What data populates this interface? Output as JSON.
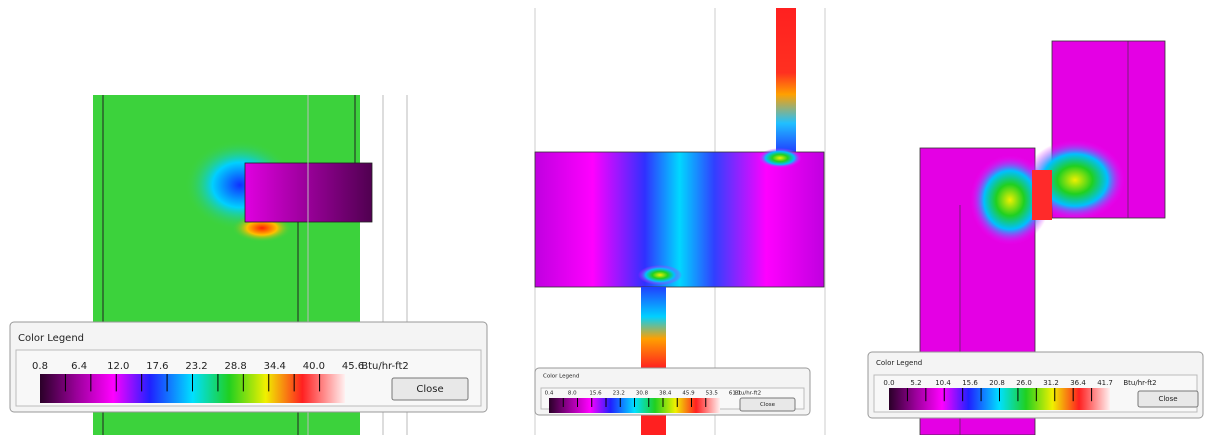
{
  "panels": [
    {
      "title": "Color Legend",
      "labels": [
        "0.8",
        "6.4",
        "12.0",
        "17.6",
        "23.2",
        "28.8",
        "34.4",
        "40.0",
        "45.6"
      ],
      "unit": "Btu/hr-ft2",
      "button": "Close"
    },
    {
      "title": "Color Legend",
      "labels": [
        "0.4",
        "8.0",
        "15.6",
        "23.2",
        "30.8",
        "38.4",
        "45.9",
        "53.5",
        "61.1"
      ],
      "unit": "Btu/hr-ft2",
      "button": "Close"
    },
    {
      "title": "Color Legend",
      "labels": [
        "0.0",
        "5.2",
        "10.4",
        "15.6",
        "20.8",
        "26.0",
        "31.2",
        "36.4",
        "41.7"
      ],
      "unit": "Btu/hr-ft2",
      "button": "Close"
    }
  ]
}
